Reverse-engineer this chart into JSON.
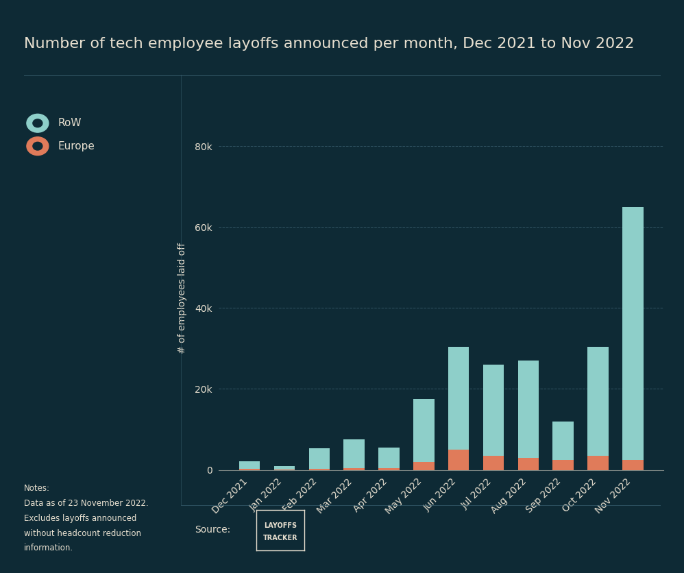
{
  "title": "Number of tech employee layoffs announced per month, Dec 2021 to Nov 2022",
  "categories": [
    "Dec 2021",
    "Jan 2022",
    "Feb 2022",
    "Mar 2022",
    "Apr 2022",
    "May 2022",
    "Jun 2022",
    "Jul 2022",
    "Aug 2022",
    "Sep 2022",
    "Oct 2022",
    "Nov 2022"
  ],
  "row_values": [
    2000,
    800,
    5000,
    7200,
    5000,
    15500,
    25500,
    22500,
    24000,
    9500,
    27000,
    62500
  ],
  "europe_values": [
    200,
    150,
    300,
    400,
    500,
    2000,
    5000,
    3500,
    3000,
    2500,
    3500,
    2500
  ],
  "row_color": "#8ECFC9",
  "europe_color": "#E07B5A",
  "background_color": "#0E2A35",
  "text_color": "#E8E0D0",
  "grid_color": "#3A6070",
  "ylabel": "# of employees laid off",
  "yticks": [
    0,
    20000,
    40000,
    60000,
    80000
  ],
  "ytick_labels": [
    "0",
    "20k",
    "40k",
    "60k",
    "80k"
  ],
  "title_fontsize": 16,
  "label_fontsize": 10,
  "tick_fontsize": 10,
  "legend_row_label": "RoW",
  "legend_europe_label": "Europe",
  "notes_text": "Notes:\n\nData as of 23 November 2022.\n\nExcludes layoffs announced\n\nwithout headcount reduction\n\ninformation."
}
